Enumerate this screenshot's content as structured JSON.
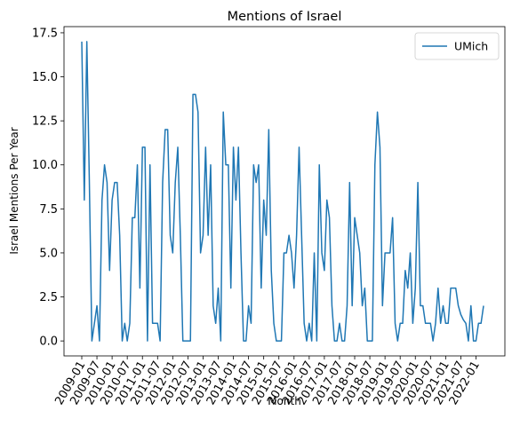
{
  "chart_data": {
    "type": "line",
    "title": "Mentions of Israel",
    "xlabel": "Month",
    "ylabel": "Israel Mentions Per Year",
    "ylim": [
      -0.85,
      17.85
    ],
    "yticks": [
      "0.0",
      "2.5",
      "5.0",
      "7.5",
      "10.0",
      "12.5",
      "15.0",
      "17.5"
    ],
    "ytick_values": [
      0,
      2.5,
      5,
      7.5,
      10,
      12.5,
      15,
      17.5
    ],
    "xticks": [
      "2009-01",
      "2009-07",
      "2010-01",
      "2010-07",
      "2011-01",
      "2011-07",
      "2012-01",
      "2012-07",
      "2013-01",
      "2013-07",
      "2014-01",
      "2014-07",
      "2015-01",
      "2015-07",
      "2016-01",
      "2016-07",
      "2017-01",
      "2017-07",
      "2018-01",
      "2018-07",
      "2019-01",
      "2019-07",
      "2020-01",
      "2020-07",
      "2021-01",
      "2021-07",
      "2022-01"
    ],
    "x_start": "2009-01",
    "grid": false,
    "legend_position": "upper right",
    "series": [
      {
        "name": "UMich",
        "color": "#1f77b4",
        "values": [
          17,
          8,
          17,
          9,
          0,
          1,
          2,
          0,
          8,
          10,
          9,
          4,
          8,
          9,
          9,
          6,
          0,
          1,
          0,
          1,
          7,
          7,
          10,
          3,
          11,
          11,
          0,
          10,
          1,
          1,
          1,
          0,
          9,
          12,
          12,
          6,
          5,
          9,
          11,
          6,
          0,
          0,
          0,
          0,
          14,
          14,
          13,
          5,
          6,
          11,
          6,
          10,
          2,
          1,
          3,
          0,
          13,
          10,
          10,
          3,
          11,
          8,
          11,
          5,
          0,
          0,
          2,
          1,
          10,
          9,
          10,
          3,
          8,
          6,
          12,
          4,
          1,
          0,
          0,
          0,
          5,
          5,
          6,
          5,
          3,
          6,
          11,
          6,
          1,
          0,
          1,
          0,
          5,
          0,
          10,
          5,
          4,
          8,
          7,
          2,
          0,
          0,
          1,
          0,
          0,
          2,
          9,
          2,
          7,
          6,
          5,
          2,
          3,
          0,
          0,
          0,
          10,
          13,
          11,
          2,
          5,
          5,
          5,
          7,
          1,
          0,
          1,
          1,
          4,
          3,
          5,
          1,
          3,
          9,
          2,
          2,
          1,
          1,
          1,
          0,
          1,
          3,
          1,
          2,
          1,
          1,
          3,
          3,
          3,
          2,
          1.5,
          1.2,
          1,
          0,
          2,
          0,
          0,
          1,
          1,
          2
        ]
      }
    ]
  }
}
